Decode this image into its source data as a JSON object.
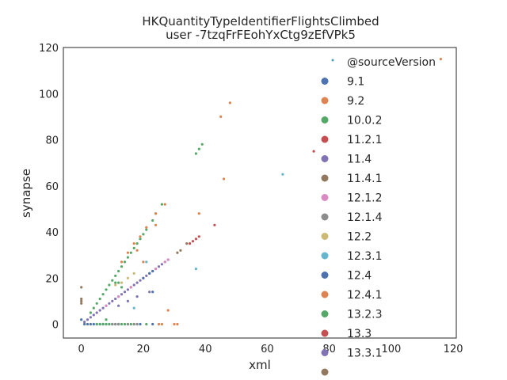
{
  "chart_data": {
    "type": "scatter",
    "title": [
      "HKQuantityTypeIdentifierFlightsClimbed",
      "user -7tzqFrFEohYxCtg9zEfVPk5"
    ],
    "xlabel": "xml",
    "ylabel": "synapse",
    "xlim": [
      -5.8,
      121
    ],
    "ylim": [
      -6,
      120
    ],
    "xticks": [
      0,
      20,
      40,
      60,
      80,
      100,
      120
    ],
    "yticks": [
      0,
      20,
      40,
      60,
      80,
      100,
      120
    ],
    "grid": false,
    "legend": {
      "placement": "top-right",
      "title": "@sourceVersion",
      "title_color": "#4c9fb0",
      "entries": [
        {
          "label": "9.1",
          "color": "#4c72b0"
        },
        {
          "label": "9.2",
          "color": "#dd8452"
        },
        {
          "label": "10.0.2",
          "color": "#55a868"
        },
        {
          "label": "11.2.1",
          "color": "#c44e52"
        },
        {
          "label": "11.4",
          "color": "#8172b3"
        },
        {
          "label": "11.4.1",
          "color": "#937860"
        },
        {
          "label": "12.1.2",
          "color": "#da8bc3"
        },
        {
          "label": "12.1.4",
          "color": "#8c8c8c"
        },
        {
          "label": "12.2",
          "color": "#ccb974"
        },
        {
          "label": "12.3.1",
          "color": "#64b5cd"
        },
        {
          "label": "12.4",
          "color": "#4c72b0"
        },
        {
          "label": "12.4.1",
          "color": "#dd8452"
        },
        {
          "label": "13.2.3",
          "color": "#55a868"
        },
        {
          "label": "13.3",
          "color": "#c44e52"
        },
        {
          "label": "13.3.1",
          "color": "#8172b3"
        },
        {
          "label": "",
          "color": "#937860"
        }
      ]
    },
    "series": [
      {
        "color": "#55a868",
        "points": [
          [
            3,
            5
          ],
          [
            4,
            7
          ],
          [
            5,
            9
          ],
          [
            6,
            11
          ],
          [
            7,
            13
          ],
          [
            8,
            15
          ],
          [
            9,
            17
          ],
          [
            10,
            19
          ],
          [
            11,
            21
          ],
          [
            12,
            23
          ],
          [
            13,
            25
          ],
          [
            14,
            27
          ],
          [
            15,
            29
          ],
          [
            16,
            31
          ],
          [
            17,
            33
          ],
          [
            18,
            35
          ],
          [
            19,
            37
          ],
          [
            20,
            39
          ],
          [
            21,
            41
          ],
          [
            23,
            45
          ],
          [
            24,
            48
          ],
          [
            26,
            52
          ],
          [
            37,
            74
          ],
          [
            38,
            76
          ],
          [
            39,
            78
          ]
        ]
      },
      {
        "color": "#dd8452",
        "points": [
          [
            13,
            27
          ],
          [
            15,
            31
          ],
          [
            17,
            35
          ],
          [
            19,
            38
          ],
          [
            21,
            42
          ],
          [
            24,
            48
          ],
          [
            27,
            52
          ],
          [
            45,
            90
          ],
          [
            48,
            96
          ],
          [
            46,
            63
          ],
          [
            38,
            48
          ],
          [
            24,
            43
          ],
          [
            20,
            27
          ],
          [
            18,
            32
          ],
          [
            28,
            6
          ],
          [
            25,
            0
          ],
          [
            26,
            0
          ],
          [
            30,
            0
          ],
          [
            31,
            0
          ],
          [
            116,
            115
          ]
        ]
      },
      {
        "color": "#8172b3",
        "points": [
          [
            1,
            1
          ],
          [
            2,
            2
          ],
          [
            3,
            3
          ],
          [
            4,
            4
          ],
          [
            5,
            5
          ],
          [
            6,
            6
          ],
          [
            7,
            7
          ],
          [
            8,
            8
          ],
          [
            9,
            9
          ],
          [
            10,
            10
          ],
          [
            11,
            11
          ],
          [
            12,
            12
          ],
          [
            13,
            13
          ],
          [
            14,
            14
          ],
          [
            15,
            15
          ],
          [
            16,
            16
          ],
          [
            17,
            17
          ],
          [
            18,
            18
          ],
          [
            19,
            19
          ],
          [
            20,
            20
          ],
          [
            21,
            21
          ],
          [
            22,
            22
          ],
          [
            23,
            23
          ],
          [
            24,
            24
          ],
          [
            25,
            25
          ],
          [
            26,
            26
          ],
          [
            27,
            27
          ],
          [
            28,
            28
          ]
        ]
      },
      {
        "color": "#da8bc3",
        "points": [
          [
            8,
            8
          ],
          [
            12,
            12
          ],
          [
            16,
            16
          ],
          [
            20,
            20
          ],
          [
            24,
            24
          ],
          [
            27,
            27
          ],
          [
            28,
            28
          ]
        ]
      },
      {
        "color": "#c44e52",
        "points": [
          [
            35,
            35
          ],
          [
            36,
            36
          ],
          [
            37,
            37
          ],
          [
            38,
            38
          ],
          [
            43,
            43
          ],
          [
            75,
            75
          ]
        ]
      },
      {
        "color": "#937860",
        "points": [
          [
            0,
            16
          ],
          [
            0,
            11
          ],
          [
            0,
            10
          ],
          [
            0,
            9
          ],
          [
            31,
            31
          ],
          [
            32,
            32
          ],
          [
            34,
            35
          ]
        ]
      },
      {
        "color": "#4c72b0",
        "points": [
          [
            0,
            2
          ],
          [
            1,
            0
          ],
          [
            2,
            0
          ],
          [
            3,
            0
          ],
          [
            4,
            0
          ],
          [
            5,
            0
          ],
          [
            6,
            0
          ],
          [
            7,
            0
          ],
          [
            8,
            0
          ],
          [
            9,
            0
          ],
          [
            10,
            0
          ],
          [
            11,
            0
          ],
          [
            12,
            0
          ],
          [
            23,
            14
          ]
        ]
      },
      {
        "color": "#55a868",
        "points": [
          [
            5,
            0
          ],
          [
            6,
            0
          ],
          [
            7,
            0
          ],
          [
            8,
            0
          ],
          [
            9,
            0
          ],
          [
            10,
            0
          ],
          [
            11,
            0
          ],
          [
            12,
            0
          ],
          [
            13,
            0
          ],
          [
            14,
            0
          ],
          [
            15,
            0
          ],
          [
            16,
            0
          ],
          [
            17,
            0
          ],
          [
            18,
            0
          ],
          [
            21,
            0
          ],
          [
            8,
            2
          ],
          [
            11,
            18
          ],
          [
            12,
            18
          ],
          [
            13,
            16
          ]
        ]
      },
      {
        "color": "#8c8c8c",
        "points": [
          [
            10,
            0
          ],
          [
            11,
            0
          ],
          [
            12,
            0
          ],
          [
            15,
            0
          ],
          [
            17,
            0
          ],
          [
            18,
            0
          ]
        ]
      },
      {
        "color": "#ccb974",
        "points": [
          [
            11,
            17
          ],
          [
            13,
            18
          ],
          [
            15,
            20
          ],
          [
            17,
            22
          ]
        ]
      },
      {
        "color": "#64b5cd",
        "points": [
          [
            37,
            24
          ],
          [
            65,
            65
          ],
          [
            21,
            27
          ],
          [
            17,
            7
          ]
        ]
      },
      {
        "color": "#4c72b0",
        "points": [
          [
            20,
            20
          ],
          [
            22,
            22
          ],
          [
            23,
            23
          ],
          [
            19,
            0
          ],
          [
            23,
            0
          ]
        ]
      },
      {
        "color": "#8172b3",
        "points": [
          [
            12,
            8
          ],
          [
            15,
            10
          ],
          [
            18,
            12
          ],
          [
            22,
            14
          ]
        ]
      }
    ]
  }
}
